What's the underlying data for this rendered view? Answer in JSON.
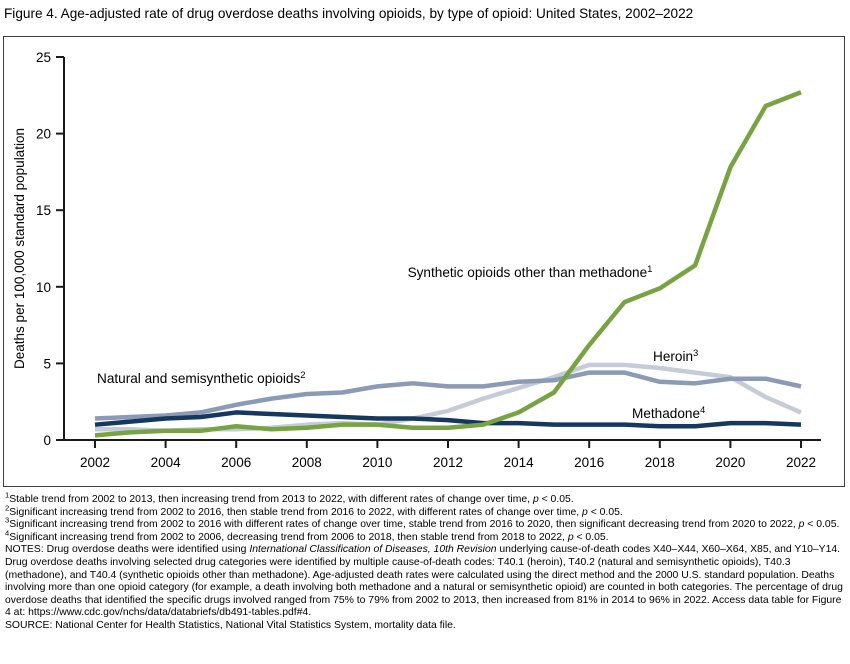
{
  "title": "Figure 4. Age-adjusted rate of drug overdose deaths involving opioids, by type of opioid: United States, 2002–2022",
  "chart_data": {
    "type": "line",
    "x": [
      2002,
      2003,
      2004,
      2005,
      2006,
      2007,
      2008,
      2009,
      2010,
      2011,
      2012,
      2013,
      2014,
      2015,
      2016,
      2017,
      2018,
      2019,
      2020,
      2021,
      2022
    ],
    "x_tick_labels": [
      "2002",
      "2004",
      "2006",
      "2008",
      "2010",
      "2012",
      "2014",
      "2016",
      "2018",
      "2020",
      "2022"
    ],
    "ylabel": "Deaths per 100,000 standard population",
    "ylim": [
      0,
      25
    ],
    "yticks": [
      0,
      5,
      10,
      15,
      20,
      25
    ],
    "grid": false,
    "legend_position": "labels-on-chart",
    "series": [
      {
        "name": "Heroin",
        "label_sup": "3",
        "color": "#c5ccd7",
        "values": [
          0.7,
          0.7,
          0.6,
          0.7,
          0.7,
          0.8,
          1.0,
          1.1,
          1.0,
          1.4,
          1.9,
          2.7,
          3.4,
          4.1,
          4.9,
          4.9,
          4.7,
          4.4,
          4.1,
          2.8,
          1.8
        ]
      },
      {
        "name": "Natural and semisynthetic opioids",
        "label_sup": "2",
        "color": "#8b9bb5",
        "values": [
          1.4,
          1.5,
          1.6,
          1.8,
          2.3,
          2.7,
          3.0,
          3.1,
          3.5,
          3.7,
          3.5,
          3.5,
          3.8,
          3.9,
          4.4,
          4.4,
          3.8,
          3.7,
          4.0,
          4.0,
          3.5
        ]
      },
      {
        "name": "Methadone",
        "label_sup": "4",
        "color": "#16375e",
        "values": [
          1.0,
          1.2,
          1.4,
          1.5,
          1.8,
          1.7,
          1.6,
          1.5,
          1.4,
          1.4,
          1.3,
          1.1,
          1.1,
          1.0,
          1.0,
          1.0,
          0.9,
          0.9,
          1.1,
          1.1,
          1.0
        ]
      },
      {
        "name": "Synthetic opioids other than methadone",
        "label_sup": "1",
        "color": "#77a342",
        "values": [
          0.3,
          0.5,
          0.6,
          0.6,
          0.9,
          0.7,
          0.8,
          1.0,
          1.0,
          0.8,
          0.8,
          1.0,
          1.8,
          3.1,
          6.2,
          9.0,
          9.9,
          11.4,
          17.8,
          21.8,
          22.7
        ]
      }
    ]
  },
  "footnotes": [
    {
      "sup": "1",
      "parts": [
        {
          "t": "Stable trend from 2002 to 2013, then increasing trend from 2013 to 2022, with different rates of change over time, "
        },
        {
          "t": "p",
          "i": true
        },
        {
          "t": " < 0.05."
        }
      ]
    },
    {
      "sup": "2",
      "parts": [
        {
          "t": "Significant increasing trend from 2002 to 2016, then stable trend from 2016 to 2022, with different rates of change over time, "
        },
        {
          "t": "p",
          "i": true
        },
        {
          "t": " < 0.05."
        }
      ]
    },
    {
      "sup": "3",
      "parts": [
        {
          "t": "Significant increasing trend from 2002 to 2016 with different rates of change over time, stable trend from 2016 to 2020, then significant decreasing trend from 2020 to 2022, "
        },
        {
          "t": "p",
          "i": true
        },
        {
          "t": " < 0.05."
        }
      ]
    },
    {
      "sup": "4",
      "parts": [
        {
          "t": "Significant increasing trend from 2002 to 2006, decreasing trend from 2006 to 2018, then stable trend from 2018 to 2022, "
        },
        {
          "t": "p",
          "i": true
        },
        {
          "t": " < 0.05."
        }
      ]
    },
    {
      "sup": null,
      "parts": [
        {
          "t": "NOTES: Drug overdose deaths were identified using "
        },
        {
          "t": "International Classification of Diseases, 10th Revision",
          "i": true
        },
        {
          "t": " underlying cause-of-death codes X40–X44, X60–X64, X85, and Y10–Y14. Drug overdose deaths involving selected drug categories were identified by multiple cause-of-death codes: T40.1 (heroin), T40.2 (natural and semisynthetic opioids), T40.3 (methadone), and T40.4 (synthetic opioids other than methadone). Age-adjusted death rates were calculated using the direct method and the 2000 U.S. standard population. Deaths involving more than one opioid category (for example, a death involving both methadone and a natural or semisynthetic opioid) are counted in both categories. The percentage of drug overdose deaths that identified the specific drugs involved ranged from 75% to 79% from 2002 to 2013, then increased from 81% in 2014 to 96% in 2022. Access data table for Figure 4 at: https://www.cdc.gov/nchs/data/databriefs/db491-tables.pdf#4."
        }
      ]
    },
    {
      "sup": null,
      "parts": [
        {
          "t": "SOURCE: National Center for Health Statistics, National Vital Statistics System, mortality data file."
        }
      ]
    }
  ]
}
